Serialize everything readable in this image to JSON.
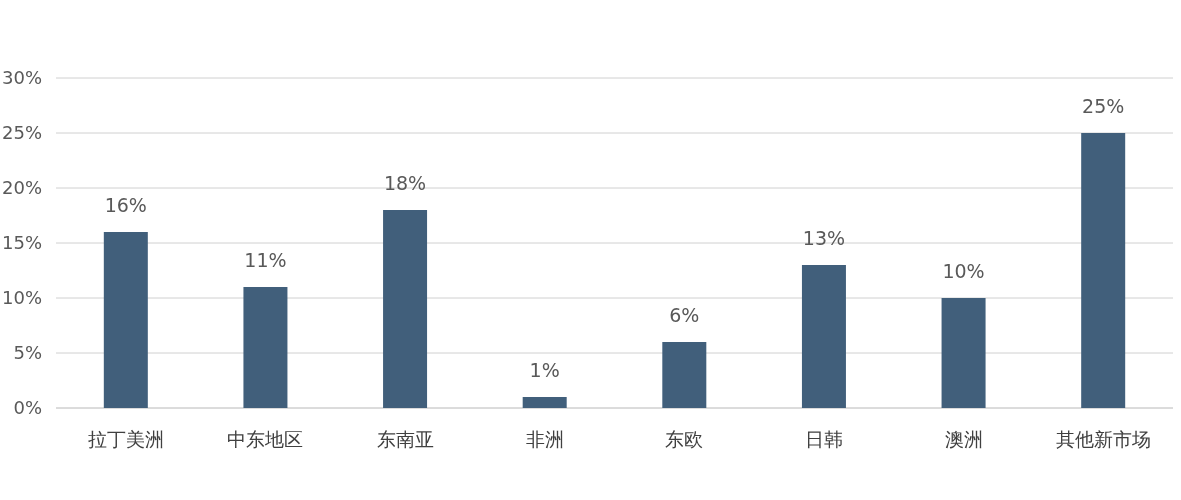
{
  "chart_data": {
    "type": "bar",
    "categories": [
      "拉丁美洲",
      "中东地区",
      "东南亚",
      "非洲",
      "东欧",
      "日韩",
      "澳洲",
      "其他新市场"
    ],
    "values": [
      16,
      11,
      18,
      1,
      6,
      13,
      10,
      25
    ],
    "color": "#415f7b",
    "ylim": [
      0,
      30
    ],
    "yticks": [
      {
        "value": 0,
        "label": "0%"
      },
      {
        "value": 5,
        "label": "5%"
      },
      {
        "value": 10,
        "label": "10%"
      },
      {
        "value": 15,
        "label": "15%"
      },
      {
        "value": 20,
        "label": "20%"
      },
      {
        "value": 25,
        "label": "25%"
      },
      {
        "value": 30,
        "label": "30%"
      }
    ],
    "value_labels": [
      "16%",
      "11%",
      "18%",
      "1%",
      "6%",
      "13%",
      "10%",
      "25%"
    ],
    "grid": "y"
  }
}
